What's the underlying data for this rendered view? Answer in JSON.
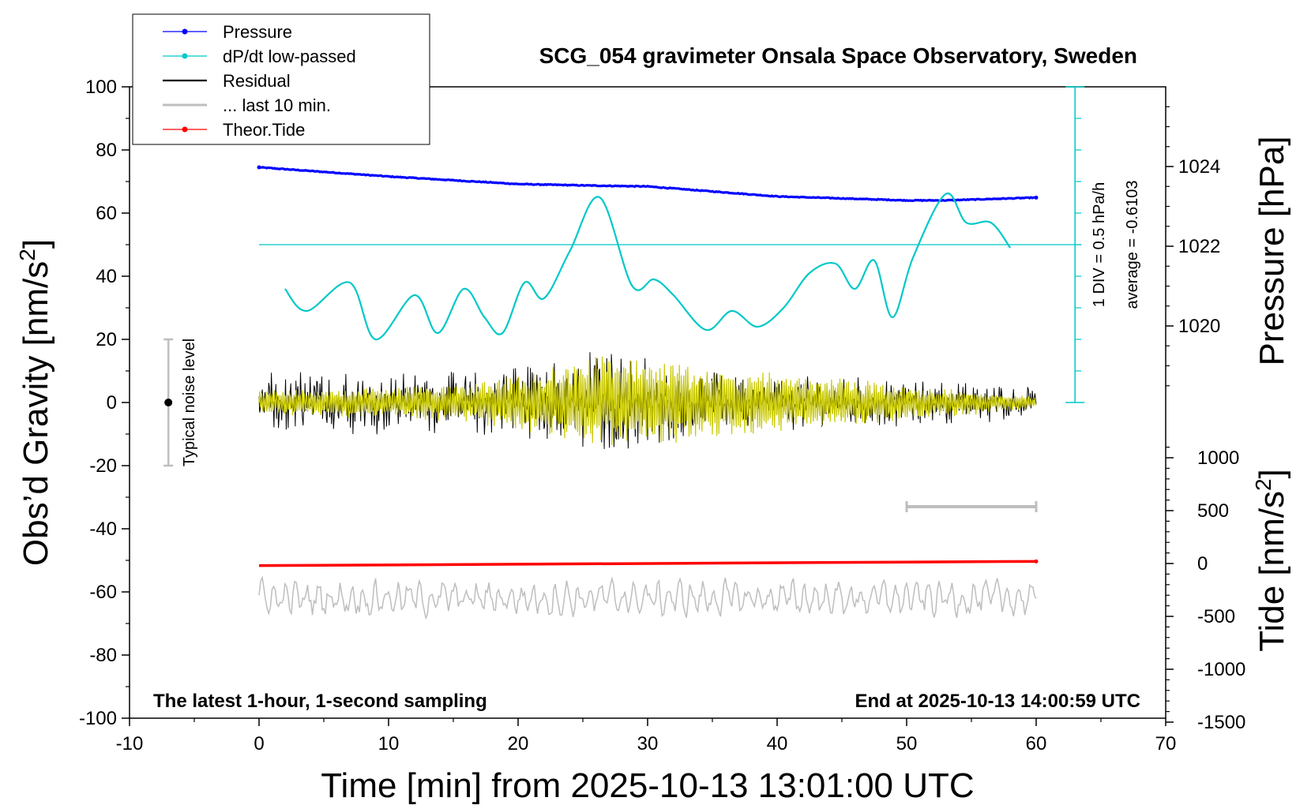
{
  "chart_data": {
    "type": "line",
    "title": "SCG_054 gravimeter Onsala Space Observatory, Sweden",
    "xlabel": "Time [min] from 2025-10-13 13:01:00 UTC",
    "ylabel_left_main": "Obs’d Gravity [nm/s",
    "ylabel_left_sup": "2",
    "ylabel_left_end": "]",
    "ylabel_right_pressure": "Pressure [hPa]",
    "ylabel_right_tide_main": "Tide [nm/s",
    "ylabel_right_tide_sup": "2",
    "ylabel_right_tide_end": "]",
    "xlim": [
      -10,
      70
    ],
    "ylim_left": [
      -100,
      100
    ],
    "x_ticks": [
      "-10",
      "0",
      "10",
      "20",
      "30",
      "40",
      "50",
      "60",
      "70"
    ],
    "y_ticks_left": [
      "100",
      "80",
      "60",
      "40",
      "20",
      "0",
      "-20",
      "-40",
      "-60",
      "-80",
      "-100"
    ],
    "pressure_axis": {
      "ticks": [
        "1024",
        "1022",
        "1020"
      ],
      "values": [
        1024,
        1022,
        1020
      ],
      "range": [
        1018,
        1026
      ]
    },
    "tide_axis": {
      "ticks": [
        "1000",
        "500",
        "0",
        "-500",
        "-1000",
        "-1500"
      ],
      "values": [
        1000,
        500,
        0,
        -500,
        -1000,
        -1500
      ],
      "range": [
        -1500,
        1500
      ]
    },
    "legend": {
      "position": "top-left",
      "entries": [
        {
          "label": "Pressure",
          "color": "#0000ff",
          "marker": true
        },
        {
          "label": "dP/dt low-passed",
          "color": "#00c8c8",
          "marker": true
        },
        {
          "label": "Residual",
          "color": "#000000",
          "marker": false
        },
        {
          "label": "... last 10 min.",
          "color": "#bebebe",
          "marker": false
        },
        {
          "label": "Theor.Tide",
          "color": "#ff0000",
          "marker": true
        }
      ]
    },
    "series": [
      {
        "name": "Pressure",
        "axis": "pressure_hPa",
        "color": "#0000ff",
        "x": [
          0,
          10,
          20,
          26,
          30,
          40,
          50,
          53,
          60
        ],
        "y": [
          1023.98,
          1023.75,
          1023.56,
          1023.52,
          1023.5,
          1023.25,
          1023.15,
          1023.15,
          1023.22
        ]
      },
      {
        "name": "dP/dt low-passed",
        "axis": "gravity_display",
        "color": "#00c8c8",
        "x": [
          2,
          3.7,
          7,
          9,
          12,
          13.8,
          15.8,
          17.4,
          18.8,
          20.5,
          22,
          24,
          26.3,
          28.8,
          30.5,
          32,
          34.5,
          36.5,
          38.5,
          40.5,
          42.5,
          44.5,
          46,
          47.5,
          48.9,
          50.5,
          53,
          54.6,
          56.5,
          58
        ],
        "y": [
          36,
          29,
          38,
          20,
          34,
          22,
          36,
          27,
          22,
          38,
          33,
          48,
          65,
          37,
          39,
          34,
          23,
          29,
          24,
          30,
          41,
          44,
          36,
          45,
          27,
          46,
          66,
          57,
          57,
          49
        ]
      },
      {
        "name": "Residual",
        "axis": "gravity",
        "color": "#000000",
        "x": [
          0,
          10,
          16,
          26.5,
          35,
          48,
          60
        ],
        "y_envelope": [
          11,
          10,
          11,
          18,
          10,
          8,
          6
        ]
      },
      {
        "name": "Residual (yellow filtered)",
        "axis": "gravity",
        "color": "#c8c800",
        "x": [
          0,
          16,
          26.5,
          60
        ],
        "y_envelope": [
          4,
          6,
          15,
          2
        ]
      },
      {
        "name": "... last 10 min.",
        "axis": "gravity_display",
        "color": "#bebebe",
        "x_range": [
          0,
          60
        ],
        "center": -62,
        "amplitude": 5
      },
      {
        "name": "Theor.Tide",
        "axis": "tide_nm_s2",
        "color": "#ff0000",
        "x": [
          0,
          60
        ],
        "y": [
          -20,
          20
        ]
      }
    ],
    "annotations": {
      "noise_bar_label": "Typical noise level",
      "noise_bar": {
        "x": -7,
        "center": 0,
        "half_range": 20
      },
      "scale_right_1": "1 DIV = 0.5 hPa/h",
      "scale_right_2": "average = -0.6103",
      "time_bar_x": [
        50,
        60
      ],
      "time_bar_y": -33,
      "dpdt_zero_line": 50,
      "bottom_left": "The latest 1-hour, 1-second sampling",
      "bottom_right": "End at 2025-10-13 14:00:59 UTC"
    }
  }
}
